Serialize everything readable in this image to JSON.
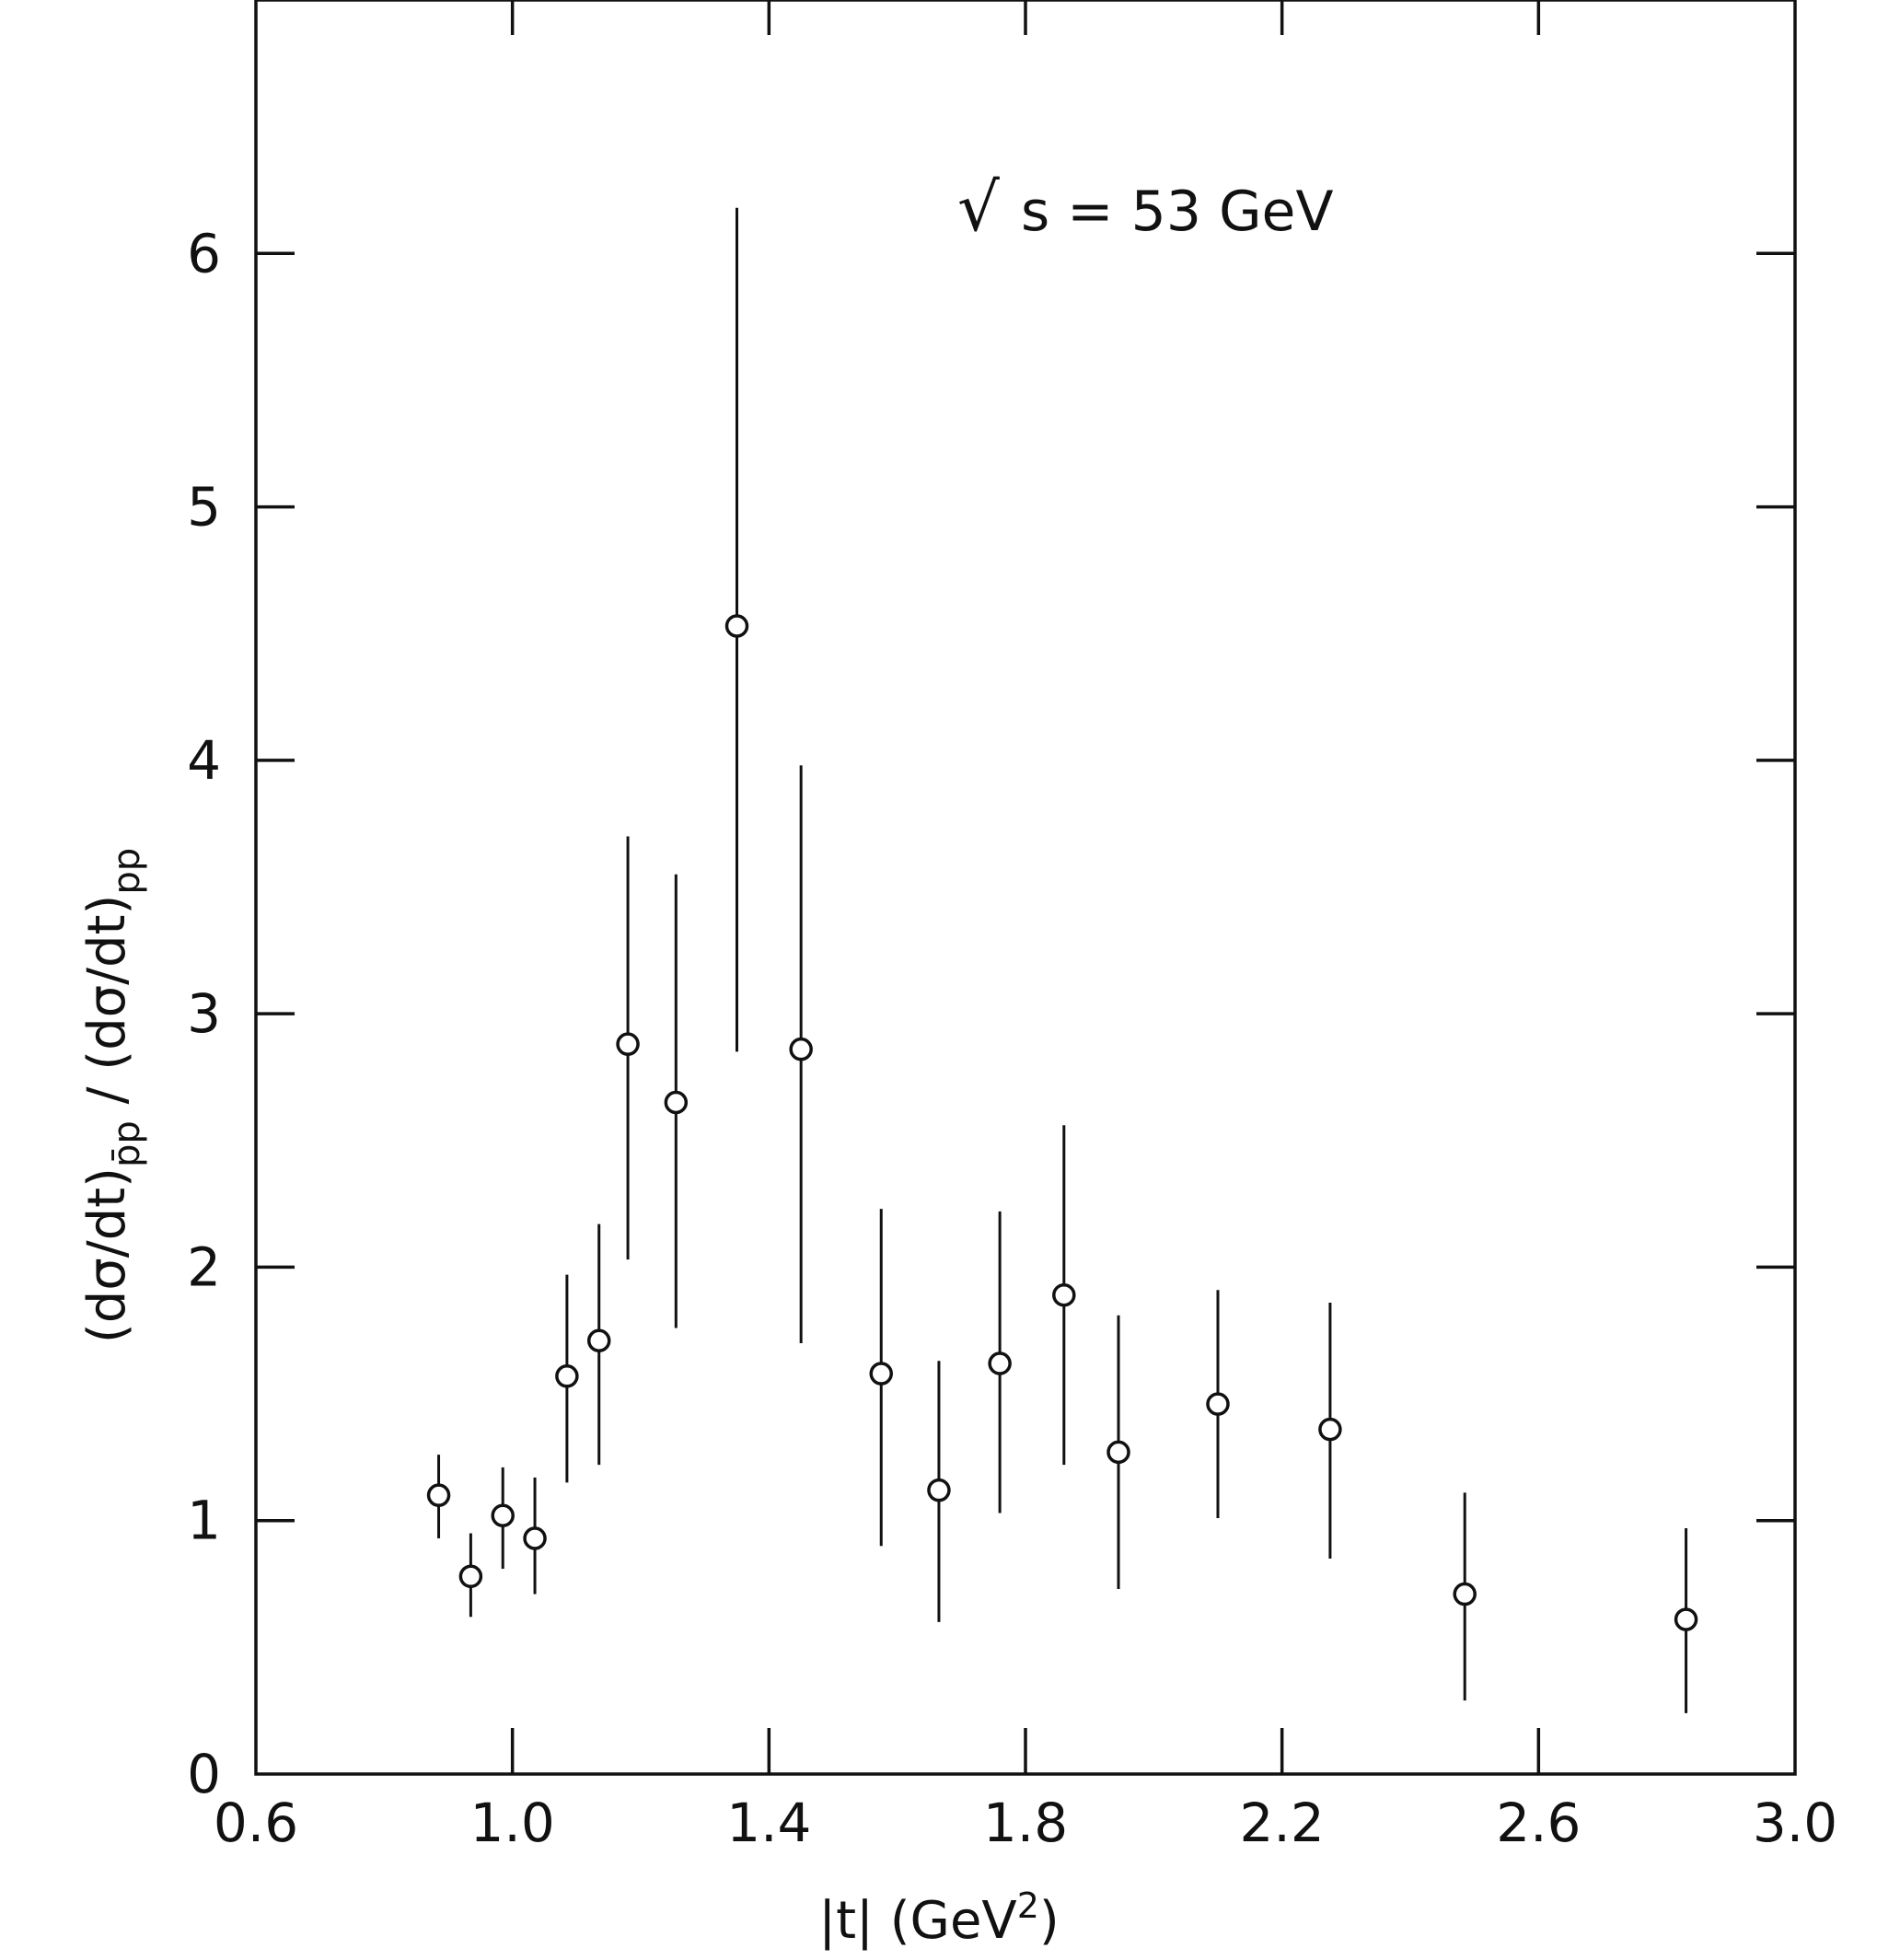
{
  "chart_data": {
    "type": "scatter",
    "annotation": {
      "root": "√",
      "text": "s  =  53 GeV"
    },
    "xlabel": {
      "main": "|t|    (GeV",
      "sup": "2",
      "close": ")"
    },
    "ylabel": {
      "p1": "(dσ/dt)",
      "sub1": "p̄p",
      "sep": "  /  ",
      "p2": "(dσ/dt)",
      "sub2": "pp"
    },
    "xlim": [
      0.6,
      3.0
    ],
    "ylim": [
      0,
      7
    ],
    "xticks": [
      {
        "value": 0.6,
        "label": "0.6"
      },
      {
        "value": 1.0,
        "label": "1.0"
      },
      {
        "value": 1.4,
        "label": "1.4"
      },
      {
        "value": 1.8,
        "label": "1.8"
      },
      {
        "value": 2.2,
        "label": "2.2"
      },
      {
        "value": 2.6,
        "label": "2.6"
      },
      {
        "value": 3.0,
        "label": "3.0"
      }
    ],
    "yticks": [
      {
        "value": 0,
        "label": "0"
      },
      {
        "value": 1,
        "label": "1"
      },
      {
        "value": 2,
        "label": "2"
      },
      {
        "value": 3,
        "label": "3"
      },
      {
        "value": 4,
        "label": "4"
      },
      {
        "value": 5,
        "label": "5"
      },
      {
        "value": 6,
        "label": "6"
      }
    ],
    "points": [
      {
        "x": 0.885,
        "y": 1.1,
        "ylow": 0.93,
        "yhigh": 1.26
      },
      {
        "x": 0.935,
        "y": 0.78,
        "ylow": 0.62,
        "yhigh": 0.95
      },
      {
        "x": 0.985,
        "y": 1.02,
        "ylow": 0.81,
        "yhigh": 1.21
      },
      {
        "x": 1.035,
        "y": 0.93,
        "ylow": 0.71,
        "yhigh": 1.17
      },
      {
        "x": 1.085,
        "y": 1.57,
        "ylow": 1.15,
        "yhigh": 1.97
      },
      {
        "x": 1.135,
        "y": 1.71,
        "ylow": 1.22,
        "yhigh": 2.17
      },
      {
        "x": 1.18,
        "y": 2.88,
        "ylow": 2.03,
        "yhigh": 3.7
      },
      {
        "x": 1.255,
        "y": 2.65,
        "ylow": 1.76,
        "yhigh": 3.55
      },
      {
        "x": 1.35,
        "y": 4.53,
        "ylow": 2.85,
        "yhigh": 6.18
      },
      {
        "x": 1.45,
        "y": 2.86,
        "ylow": 1.7,
        "yhigh": 3.98
      },
      {
        "x": 1.575,
        "y": 1.58,
        "ylow": 0.9,
        "yhigh": 2.23
      },
      {
        "x": 1.665,
        "y": 1.12,
        "ylow": 0.6,
        "yhigh": 1.63
      },
      {
        "x": 1.76,
        "y": 1.62,
        "ylow": 1.03,
        "yhigh": 2.22
      },
      {
        "x": 1.86,
        "y": 1.89,
        "ylow": 1.22,
        "yhigh": 2.56
      },
      {
        "x": 1.945,
        "y": 1.27,
        "ylow": 0.73,
        "yhigh": 1.81
      },
      {
        "x": 2.1,
        "y": 1.46,
        "ylow": 1.01,
        "yhigh": 1.91
      },
      {
        "x": 2.275,
        "y": 1.36,
        "ylow": 0.85,
        "yhigh": 1.86
      },
      {
        "x": 2.485,
        "y": 0.71,
        "ylow": 0.29,
        "yhigh": 1.11
      },
      {
        "x": 2.83,
        "y": 0.61,
        "ylow": 0.24,
        "yhigh": 0.97
      }
    ]
  }
}
